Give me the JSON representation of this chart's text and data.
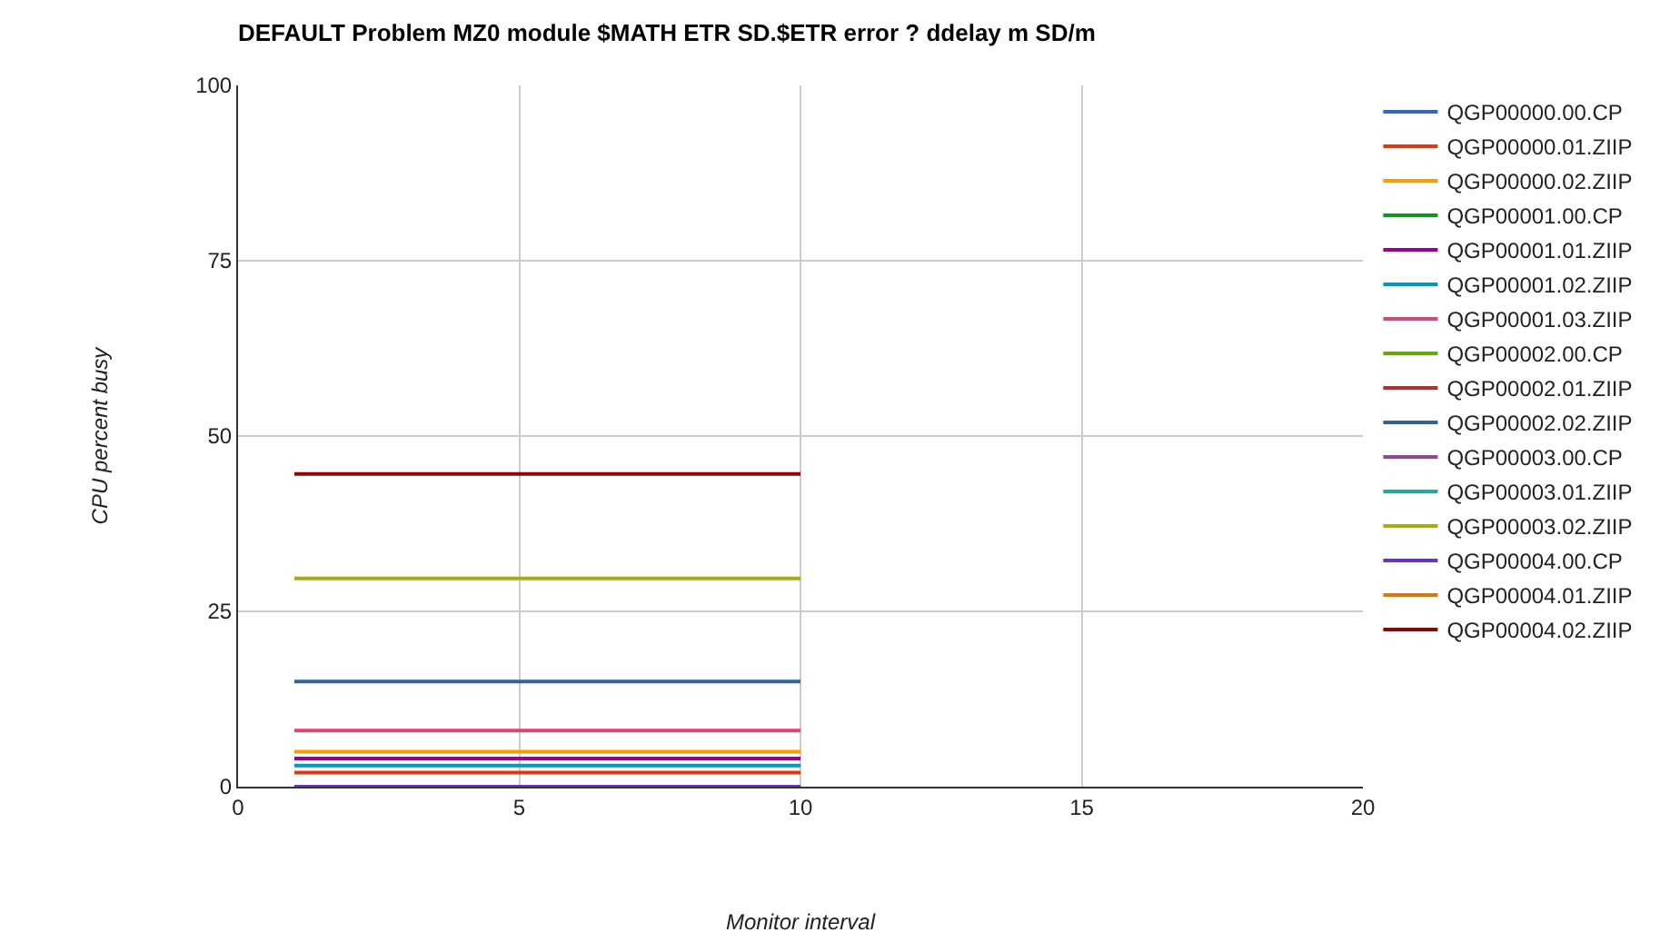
{
  "chart_data": {
    "type": "line",
    "title": "DEFAULT Problem MZ0 module $MATH ETR SD.$ETR error ? ddelay m SD/m",
    "xlabel": "Monitor interval",
    "ylabel": "CPU percent busy",
    "x": [
      1,
      10
    ],
    "series": [
      {
        "name": "QGP00000.00.CP",
        "color": "#3366cc",
        "values": [
          null,
          null
        ]
      },
      {
        "name": "QGP00000.01.ZIIP",
        "color": "#dc3912",
        "values": [
          2,
          2
        ]
      },
      {
        "name": "QGP00000.02.ZIIP",
        "color": "#ff9900",
        "values": [
          5,
          5
        ]
      },
      {
        "name": "QGP00001.00.CP",
        "color": "#109618",
        "values": [
          null,
          null
        ]
      },
      {
        "name": "QGP00001.01.ZIIP",
        "color": "#990099",
        "values": [
          4,
          4
        ]
      },
      {
        "name": "QGP00001.02.ZIIP",
        "color": "#0099c6",
        "values": [
          3,
          3
        ]
      },
      {
        "name": "QGP00001.03.ZIIP",
        "color": "#dd4477",
        "values": [
          8,
          8
        ]
      },
      {
        "name": "QGP00002.00.CP",
        "color": "#66aa00",
        "values": [
          null,
          null
        ]
      },
      {
        "name": "QGP00002.01.ZIIP",
        "color": "#b82e2e",
        "values": [
          null,
          null
        ]
      },
      {
        "name": "QGP00002.02.ZIIP",
        "color": "#316395",
        "values": [
          15,
          15
        ]
      },
      {
        "name": "QGP00003.00.CP",
        "color": "#994499",
        "values": [
          null,
          null
        ]
      },
      {
        "name": "QGP00003.01.ZIIP",
        "color": "#22aa99",
        "values": [
          null,
          null
        ]
      },
      {
        "name": "QGP00003.02.ZIIP",
        "color": "#aaaa11",
        "values": [
          29.7,
          29.7
        ]
      },
      {
        "name": "QGP00004.00.CP",
        "color": "#6633cc",
        "values": [
          0,
          0
        ]
      },
      {
        "name": "QGP00004.01.ZIIP",
        "color": "#e67300",
        "values": [
          null,
          null
        ]
      },
      {
        "name": "QGP00004.02.ZIIP",
        "color": "#8b0707",
        "values": [
          44.6,
          44.6
        ]
      }
    ],
    "xlim": [
      0,
      20
    ],
    "xticks": [
      0,
      5,
      10,
      15,
      20
    ],
    "ylim": [
      0,
      100
    ],
    "yticks": [
      0,
      25,
      50,
      75,
      100
    ],
    "grid": true,
    "legend": "right",
    "marker": "none",
    "line_style": "solid"
  }
}
